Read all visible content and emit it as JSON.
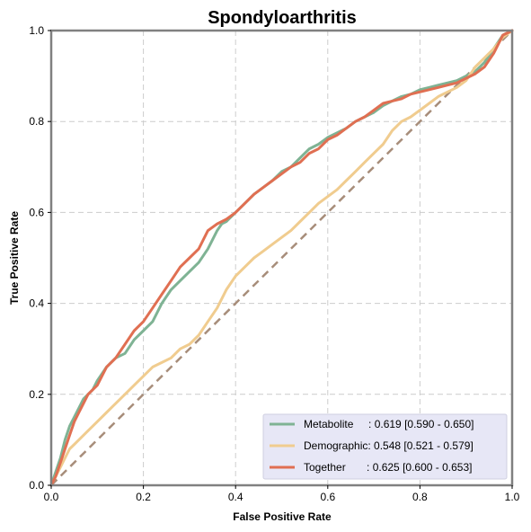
{
  "chart_data": {
    "type": "line",
    "title": "Spondyloarthritis",
    "xlabel": "False Positive Rate",
    "ylabel": "True Positive Rate",
    "xlim": [
      0,
      1
    ],
    "ylim": [
      0,
      1
    ],
    "xticks": [
      "0.0",
      "0.2",
      "0.4",
      "0.6",
      "0.8",
      "1.0"
    ],
    "yticks": [
      "0.0",
      "0.2",
      "0.4",
      "0.6",
      "0.8",
      "1.0"
    ],
    "grid": true,
    "legend_position": "lower-right",
    "diagonal": {
      "color": "#a78d7a"
    },
    "series": [
      {
        "name": "Metabolite",
        "legend_label": "Metabolite     : 0.619 [0.590 - 0.650]",
        "color": "#7fb394",
        "x": [
          0.0,
          0.01,
          0.02,
          0.03,
          0.04,
          0.05,
          0.06,
          0.07,
          0.08,
          0.09,
          0.1,
          0.12,
          0.14,
          0.16,
          0.18,
          0.2,
          0.22,
          0.24,
          0.26,
          0.28,
          0.3,
          0.32,
          0.34,
          0.36,
          0.37,
          0.38,
          0.4,
          0.42,
          0.44,
          0.46,
          0.48,
          0.5,
          0.52,
          0.54,
          0.56,
          0.58,
          0.6,
          0.62,
          0.64,
          0.66,
          0.68,
          0.7,
          0.72,
          0.74,
          0.76,
          0.78,
          0.8,
          0.82,
          0.84,
          0.86,
          0.88,
          0.9,
          0.92,
          0.94,
          0.96,
          0.98,
          1.0
        ],
        "y": [
          0.0,
          0.03,
          0.06,
          0.1,
          0.13,
          0.15,
          0.17,
          0.19,
          0.2,
          0.21,
          0.23,
          0.26,
          0.28,
          0.29,
          0.32,
          0.34,
          0.36,
          0.4,
          0.43,
          0.45,
          0.47,
          0.49,
          0.52,
          0.56,
          0.575,
          0.58,
          0.6,
          0.62,
          0.64,
          0.655,
          0.67,
          0.69,
          0.7,
          0.72,
          0.74,
          0.75,
          0.765,
          0.775,
          0.785,
          0.8,
          0.81,
          0.82,
          0.835,
          0.845,
          0.855,
          0.86,
          0.87,
          0.875,
          0.88,
          0.885,
          0.89,
          0.9,
          0.91,
          0.93,
          0.96,
          0.99,
          1.0
        ]
      },
      {
        "name": "Demographic",
        "legend_label": "Demographic: 0.548 [0.521 - 0.579]",
        "color": "#f0cc8f",
        "x": [
          0.0,
          0.01,
          0.02,
          0.03,
          0.04,
          0.05,
          0.06,
          0.08,
          0.1,
          0.12,
          0.14,
          0.16,
          0.18,
          0.2,
          0.22,
          0.24,
          0.26,
          0.28,
          0.3,
          0.32,
          0.34,
          0.36,
          0.38,
          0.4,
          0.42,
          0.44,
          0.46,
          0.48,
          0.5,
          0.52,
          0.54,
          0.56,
          0.58,
          0.6,
          0.62,
          0.64,
          0.66,
          0.68,
          0.7,
          0.72,
          0.74,
          0.76,
          0.78,
          0.8,
          0.82,
          0.84,
          0.86,
          0.88,
          0.9,
          0.92,
          0.94,
          0.96,
          0.98,
          1.0
        ],
        "y": [
          0.0,
          0.02,
          0.04,
          0.06,
          0.08,
          0.09,
          0.1,
          0.12,
          0.14,
          0.16,
          0.18,
          0.2,
          0.22,
          0.24,
          0.26,
          0.27,
          0.28,
          0.3,
          0.31,
          0.33,
          0.36,
          0.39,
          0.43,
          0.46,
          0.48,
          0.5,
          0.515,
          0.53,
          0.545,
          0.56,
          0.58,
          0.6,
          0.62,
          0.635,
          0.65,
          0.67,
          0.69,
          0.71,
          0.73,
          0.75,
          0.78,
          0.8,
          0.81,
          0.825,
          0.84,
          0.855,
          0.865,
          0.875,
          0.89,
          0.92,
          0.94,
          0.96,
          0.985,
          1.0
        ]
      },
      {
        "name": "Together",
        "legend_label": "Together       : 0.625 [0.600 - 0.653]",
        "color": "#e06f52",
        "x": [
          0.0,
          0.01,
          0.02,
          0.03,
          0.04,
          0.05,
          0.06,
          0.07,
          0.08,
          0.09,
          0.1,
          0.12,
          0.14,
          0.16,
          0.18,
          0.2,
          0.22,
          0.24,
          0.26,
          0.28,
          0.3,
          0.32,
          0.34,
          0.36,
          0.38,
          0.4,
          0.42,
          0.44,
          0.46,
          0.48,
          0.5,
          0.52,
          0.54,
          0.56,
          0.58,
          0.6,
          0.62,
          0.64,
          0.66,
          0.68,
          0.7,
          0.72,
          0.74,
          0.76,
          0.78,
          0.8,
          0.82,
          0.84,
          0.86,
          0.88,
          0.9,
          0.92,
          0.94,
          0.96,
          0.98,
          1.0
        ],
        "y": [
          0.0,
          0.02,
          0.05,
          0.08,
          0.11,
          0.14,
          0.16,
          0.18,
          0.2,
          0.21,
          0.22,
          0.26,
          0.28,
          0.31,
          0.34,
          0.36,
          0.39,
          0.42,
          0.45,
          0.48,
          0.5,
          0.52,
          0.56,
          0.575,
          0.585,
          0.6,
          0.62,
          0.64,
          0.655,
          0.67,
          0.685,
          0.7,
          0.71,
          0.73,
          0.74,
          0.76,
          0.77,
          0.785,
          0.8,
          0.81,
          0.825,
          0.84,
          0.845,
          0.85,
          0.86,
          0.865,
          0.87,
          0.875,
          0.88,
          0.885,
          0.895,
          0.905,
          0.92,
          0.95,
          0.99,
          1.0
        ]
      }
    ]
  }
}
